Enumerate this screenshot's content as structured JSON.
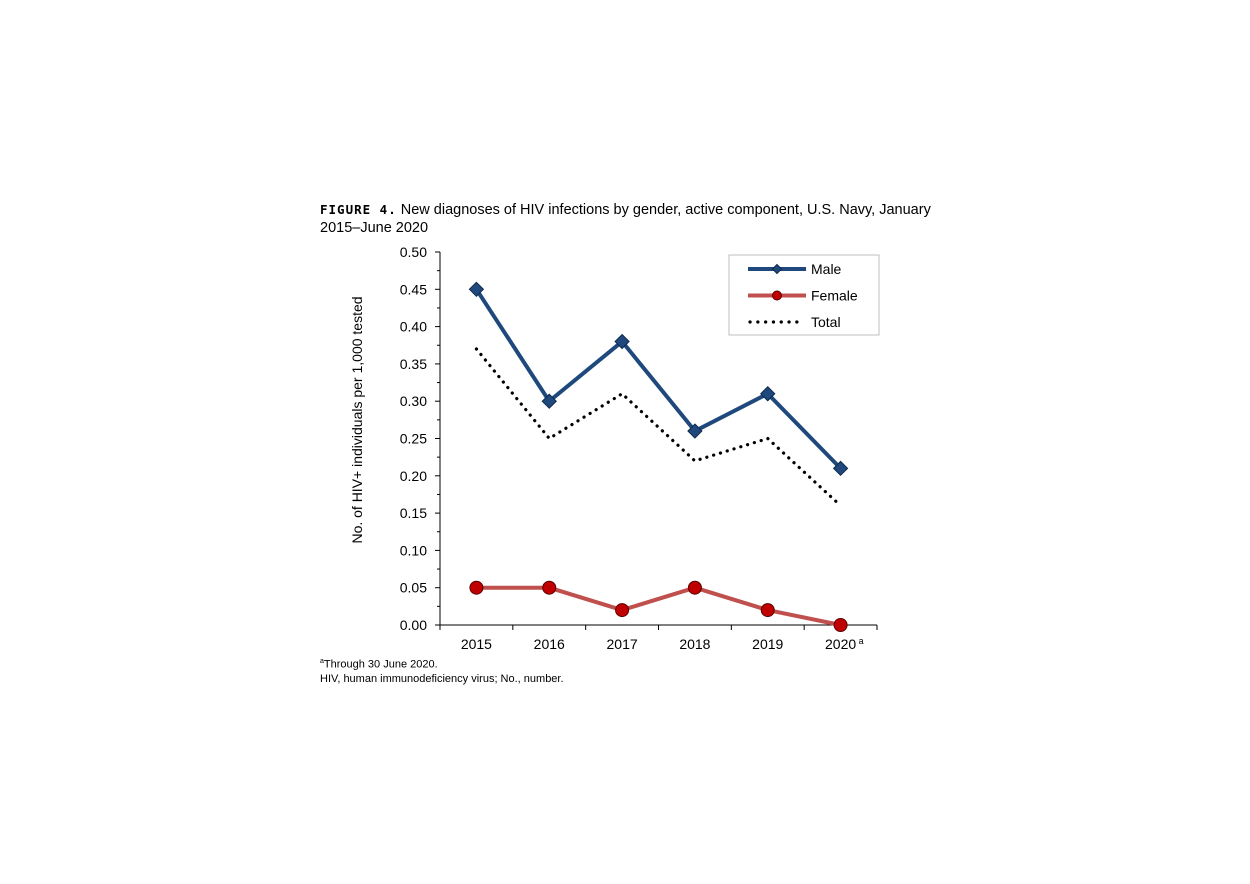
{
  "figure": {
    "label": "FIGURE 4.",
    "title": "New diagnoses of HIV infections by gender, active component, U.S. Navy, January 2015–June 2020",
    "footnote_marker": "a",
    "footnote": "Through 30 June 2020.",
    "abbreviations": "HIV, human immunodeficiency virus; No., number."
  },
  "chart_data": {
    "type": "line",
    "title": "New diagnoses of HIV infections by gender, active component, U.S. Navy, January 2015–June 2020",
    "xlabel": "",
    "ylabel": "No. of HIV+ individuals per 1,000 tested",
    "categories": [
      "2015",
      "2016",
      "2017",
      "2018",
      "2019",
      "2020"
    ],
    "category_superscripts": [
      "",
      "",
      "",
      "",
      "",
      "a"
    ],
    "ylim": [
      0,
      0.5
    ],
    "yticks": [
      "0.00",
      "0.05",
      "0.10",
      "0.15",
      "0.20",
      "0.25",
      "0.30",
      "0.35",
      "0.40",
      "0.45",
      "0.50"
    ],
    "grid": false,
    "legend_position": "top-right",
    "series": [
      {
        "name": "Male",
        "values": [
          0.45,
          0.3,
          0.38,
          0.26,
          0.31,
          0.21
        ],
        "color": "#1f497d",
        "marker": "diamond",
        "line": "solid"
      },
      {
        "name": "Female",
        "values": [
          0.05,
          0.05,
          0.02,
          0.05,
          0.02,
          0.0
        ],
        "color": "#c0504d",
        "marker_color": "#c00000",
        "marker": "circle",
        "line": "solid"
      },
      {
        "name": "Total",
        "values": [
          0.37,
          0.25,
          0.31,
          0.22,
          0.25,
          0.16
        ],
        "color": "#000000",
        "marker": "none",
        "line": "dotted"
      }
    ]
  }
}
